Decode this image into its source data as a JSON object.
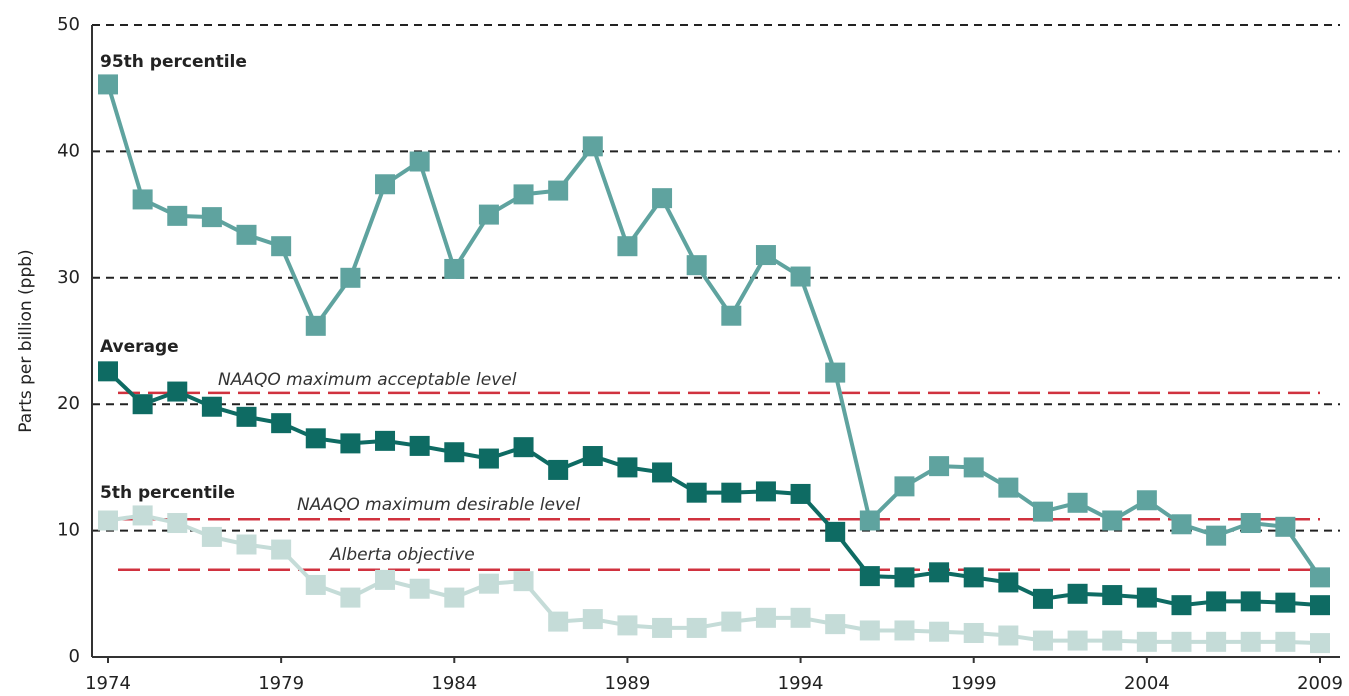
{
  "chart_data": {
    "type": "line",
    "ylabel": "Parts per billion (ppb)",
    "x": [
      1974,
      1975,
      1976,
      1977,
      1978,
      1979,
      1980,
      1981,
      1982,
      1983,
      1984,
      1985,
      1986,
      1987,
      1988,
      1989,
      1990,
      1991,
      1992,
      1993,
      1994,
      1995,
      1996,
      1997,
      1998,
      1999,
      2000,
      2001,
      2002,
      2003,
      2004,
      2005,
      2006,
      2007,
      2008,
      2009
    ],
    "xlim": [
      1974,
      2009
    ],
    "xticks": [
      1974,
      1979,
      1984,
      1989,
      1994,
      1999,
      2004,
      2009
    ],
    "ylim": [
      0,
      50
    ],
    "yticks": [
      0,
      10,
      20,
      30,
      40,
      50
    ],
    "grid": true,
    "series": [
      {
        "name": "95th percentile",
        "color": "#5fa39f",
        "values": [
          45.3,
          36.2,
          34.9,
          34.8,
          33.4,
          32.5,
          26.2,
          30.0,
          37.4,
          39.2,
          30.7,
          35.0,
          36.6,
          36.9,
          40.4,
          32.5,
          36.3,
          31.0,
          27.0,
          31.8,
          30.1,
          22.5,
          10.8,
          13.5,
          15.1,
          15.0,
          13.4,
          11.5,
          12.2,
          10.8,
          12.4,
          10.5,
          9.6,
          10.6,
          10.3,
          6.3
        ]
      },
      {
        "name": "Average",
        "color": "#0e6b63",
        "values": [
          22.6,
          20.0,
          21.0,
          19.8,
          19.0,
          18.5,
          17.3,
          16.9,
          17.1,
          16.7,
          16.2,
          15.7,
          16.6,
          14.8,
          15.9,
          15.0,
          14.6,
          13.0,
          13.0,
          13.1,
          12.9,
          9.9,
          6.4,
          6.3,
          6.7,
          6.3,
          5.9,
          4.6,
          5.0,
          4.9,
          4.7,
          4.1,
          4.4,
          4.4,
          4.3,
          4.1
        ]
      },
      {
        "name": "5th percentile",
        "color": "#c5dcd8",
        "values": [
          10.8,
          11.2,
          10.6,
          9.5,
          8.9,
          8.5,
          5.7,
          4.7,
          6.1,
          5.4,
          4.7,
          5.8,
          6.0,
          2.8,
          3.0,
          2.5,
          2.3,
          2.3,
          2.8,
          3.1,
          3.1,
          2.6,
          2.1,
          2.1,
          2.0,
          1.9,
          1.7,
          1.3,
          1.3,
          1.3,
          1.2,
          1.2,
          1.2,
          1.2,
          1.2,
          1.1
        ]
      }
    ],
    "reference_lines": [
      {
        "label": "NAAQO maximum acceptable level",
        "value": 20.9
      },
      {
        "label": "NAAQO maximum desirable level",
        "value": 10.9
      },
      {
        "label": "Alberta objective",
        "value": 6.9
      }
    ],
    "reference_color": "#d0323f"
  }
}
